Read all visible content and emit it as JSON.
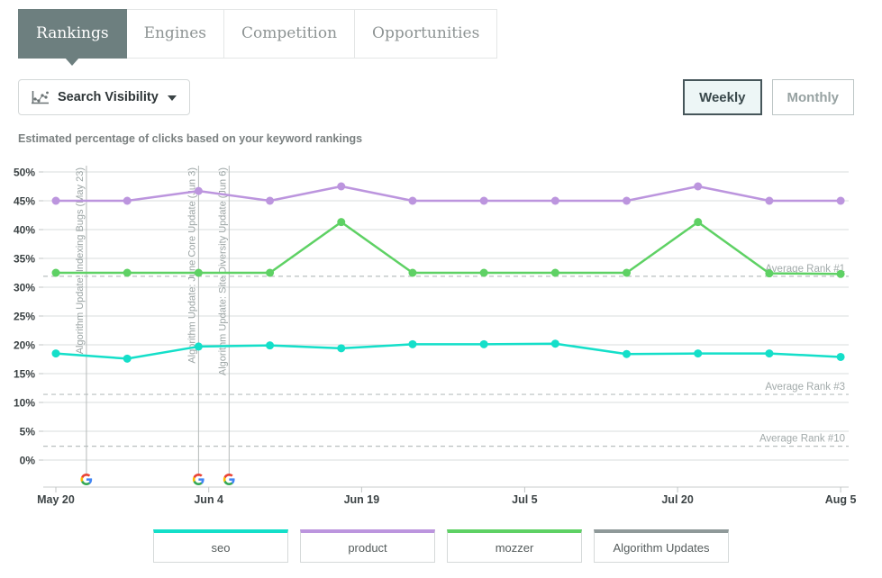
{
  "tabs": {
    "items": [
      {
        "label": "Rankings",
        "active": true
      },
      {
        "label": "Engines",
        "active": false
      },
      {
        "label": "Competition",
        "active": false
      },
      {
        "label": "Opportunities",
        "active": false
      }
    ]
  },
  "toolbar": {
    "metric_dropdown": {
      "label": "Search Visibility",
      "icon": "line-chart-icon"
    },
    "interval_toggle": {
      "options": [
        {
          "label": "Weekly",
          "active": true
        },
        {
          "label": "Monthly",
          "active": false
        }
      ]
    }
  },
  "subtitle": "Estimated percentage of clicks based on your keyword rankings",
  "chart_data": {
    "type": "line",
    "title": "Search Visibility",
    "ylabel": "",
    "xlabel": "",
    "grid": true,
    "legend_position": "bottom",
    "ylim": [
      0,
      50
    ],
    "y_tick_step": 5,
    "y_tick_suffix": "%",
    "x_dates": [
      "May 20",
      "May 27",
      "Jun 3",
      "Jun 10",
      "Jun 17",
      "Jun 24",
      "Jul 1",
      "Jul 8",
      "Jul 15",
      "Jul 22",
      "Jul 29",
      "Aug 5"
    ],
    "x_day_offsets": [
      0,
      7,
      14,
      21,
      28,
      35,
      42,
      49,
      56,
      63,
      70,
      77
    ],
    "axis_ticks": [
      {
        "label": "May 20",
        "day": 0
      },
      {
        "label": "Jun 4",
        "day": 15
      },
      {
        "label": "Jun 19",
        "day": 30
      },
      {
        "label": "Jul 5",
        "day": 46
      },
      {
        "label": "Jul 20",
        "day": 61
      },
      {
        "label": "Aug 5",
        "day": 77
      }
    ],
    "series": [
      {
        "name": "seo",
        "color": "#14dfc9",
        "values": [
          18.5,
          17.6,
          19.7,
          19.9,
          19.4,
          20.1,
          20.1,
          20.2,
          18.4,
          18.5,
          18.5,
          17.9
        ]
      },
      {
        "name": "product",
        "color": "#bc95de",
        "values": [
          45,
          45,
          46.7,
          45,
          47.5,
          45,
          45,
          45,
          45,
          47.5,
          45,
          45
        ]
      },
      {
        "name": "mozzer",
        "color": "#5ed164",
        "values": [
          32.5,
          32.5,
          32.5,
          32.5,
          41.3,
          32.5,
          32.5,
          32.5,
          32.5,
          41.3,
          32.4,
          32.3
        ]
      }
    ],
    "average_lines": [
      {
        "label": "Average Rank #1",
        "value": 31.9
      },
      {
        "label": "Average Rank #3",
        "value": 11.4
      },
      {
        "label": "Average Rank #10",
        "value": 2.4
      }
    ],
    "annotations": [
      {
        "label": "Algorithm Update: Indexing Bugs (May 23)",
        "day": 3,
        "icon": "google-g"
      },
      {
        "label": "Algorithm Update: June Core Update (Jun 3)",
        "day": 14,
        "icon": "google-g"
      },
      {
        "label": "Algorithm Update: Site Diversity Update (Jun 6)",
        "day": 17,
        "icon": "google-g"
      }
    ]
  },
  "legend": {
    "items": [
      {
        "label": "seo",
        "color": "#14dfc9"
      },
      {
        "label": "product",
        "color": "#bc95de"
      },
      {
        "label": "mozzer",
        "color": "#5ed164"
      },
      {
        "label": "Algorithm Updates",
        "color": "#8f9999"
      }
    ]
  },
  "colors": {
    "active_tab_bg": "#6d7f7f",
    "weekly_active_bg": "#edf6f6",
    "weekly_active_border": "#46565a",
    "gridline": "#dadddd",
    "annotation_line": "#b4bab9",
    "average_line": "#b9bfbf"
  }
}
